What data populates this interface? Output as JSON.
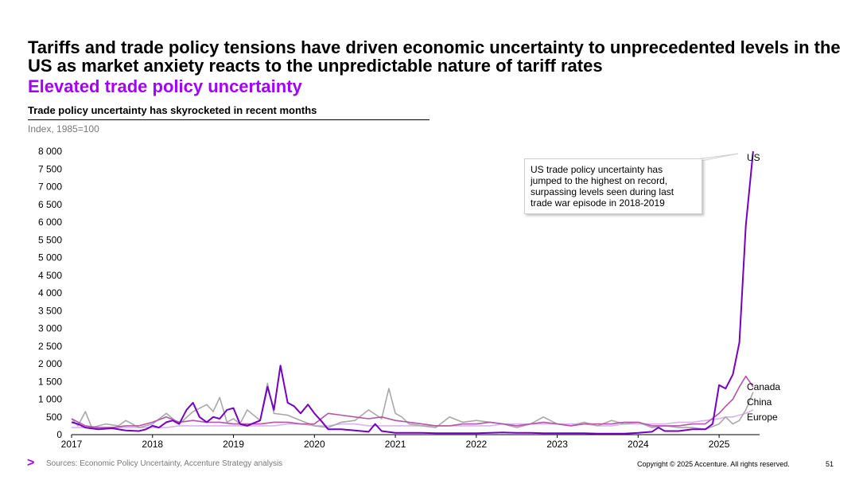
{
  "header": {
    "headline": "Tariffs and trade policy tensions have driven economic uncertainty to unprecedented levels in the US as market anxiety reacts to the unpredictable nature of tariff rates",
    "subhead": "Elevated trade policy uncertainty"
  },
  "chart_header": {
    "title": "Trade policy uncertainty has skyrocketed in recent months",
    "units": "Index, 1985=100"
  },
  "callout": {
    "text": "US trade policy uncertainty has jumped to the highest on record, surpassing levels seen during last trade war episode in 2018-2019"
  },
  "footer": {
    "logo": ">",
    "source": "Sources: Economic Policy Uncertainty, Accenture Strategy analysis",
    "copyright": "Copyright © 2025 Accenture. All rights reserved.",
    "page_number": "51"
  },
  "colors": {
    "US": "#7500c0",
    "Canada": "#b455aa",
    "China": "#a8a8a8",
    "Europe": "#d8b3f0",
    "accent": "#a100ff"
  },
  "chart_data": {
    "type": "line",
    "title": "Trade policy uncertainty has skyrocketed in recent months",
    "ylabel": "Index, 1985=100",
    "xlabel": "",
    "ylim": [
      0,
      8000
    ],
    "xlim": [
      2017,
      2025.5
    ],
    "x_ticks": [
      "2017",
      "2018",
      "2019",
      "2020",
      "2021",
      "2022",
      "2023",
      "2024",
      "2025"
    ],
    "y_ticks": [
      "0",
      "500",
      "1 000",
      "1 500",
      "2 000",
      "2 500",
      "3 000",
      "3 500",
      "4 000",
      "4 500",
      "5 000",
      "5 500",
      "6 000",
      "6 500",
      "7 000",
      "7 500",
      "8 000"
    ],
    "y_tick_values": [
      0,
      500,
      1000,
      1500,
      2000,
      2500,
      3000,
      3500,
      4000,
      4500,
      5000,
      5500,
      6000,
      6500,
      7000,
      7500,
      8000
    ],
    "grid": false,
    "legend": "end-of-line labels",
    "series": [
      {
        "name": "US",
        "points": [
          [
            2017.0,
            350
          ],
          [
            2017.08,
            300
          ],
          [
            2017.17,
            200
          ],
          [
            2017.33,
            150
          ],
          [
            2017.5,
            180
          ],
          [
            2017.67,
            120
          ],
          [
            2017.83,
            100
          ],
          [
            2017.92,
            150
          ],
          [
            2018.0,
            250
          ],
          [
            2018.08,
            200
          ],
          [
            2018.17,
            350
          ],
          [
            2018.25,
            400
          ],
          [
            2018.33,
            300
          ],
          [
            2018.42,
            700
          ],
          [
            2018.5,
            900
          ],
          [
            2018.58,
            500
          ],
          [
            2018.67,
            350
          ],
          [
            2018.75,
            500
          ],
          [
            2018.83,
            450
          ],
          [
            2018.92,
            700
          ],
          [
            2019.0,
            750
          ],
          [
            2019.08,
            300
          ],
          [
            2019.17,
            250
          ],
          [
            2019.33,
            400
          ],
          [
            2019.42,
            1350
          ],
          [
            2019.5,
            700
          ],
          [
            2019.58,
            1950
          ],
          [
            2019.67,
            900
          ],
          [
            2019.75,
            800
          ],
          [
            2019.83,
            600
          ],
          [
            2019.92,
            850
          ],
          [
            2020.0,
            600
          ],
          [
            2020.08,
            400
          ],
          [
            2020.17,
            150
          ],
          [
            2020.33,
            150
          ],
          [
            2020.5,
            120
          ],
          [
            2020.67,
            80
          ],
          [
            2020.75,
            300
          ],
          [
            2020.83,
            100
          ],
          [
            2021.0,
            50
          ],
          [
            2021.17,
            50
          ],
          [
            2021.33,
            50
          ],
          [
            2021.5,
            40
          ],
          [
            2021.67,
            40
          ],
          [
            2021.83,
            40
          ],
          [
            2022.0,
            40
          ],
          [
            2022.17,
            50
          ],
          [
            2022.33,
            60
          ],
          [
            2022.5,
            50
          ],
          [
            2022.67,
            50
          ],
          [
            2022.83,
            40
          ],
          [
            2023.0,
            40
          ],
          [
            2023.17,
            40
          ],
          [
            2023.33,
            40
          ],
          [
            2023.5,
            30
          ],
          [
            2023.67,
            30
          ],
          [
            2023.83,
            30
          ],
          [
            2024.0,
            50
          ],
          [
            2024.17,
            80
          ],
          [
            2024.25,
            200
          ],
          [
            2024.33,
            100
          ],
          [
            2024.5,
            100
          ],
          [
            2024.67,
            150
          ],
          [
            2024.83,
            150
          ],
          [
            2024.92,
            300
          ],
          [
            2025.0,
            1400
          ],
          [
            2025.08,
            1300
          ],
          [
            2025.17,
            1700
          ],
          [
            2025.25,
            2600
          ],
          [
            2025.33,
            5900
          ],
          [
            2025.42,
            8000
          ]
        ]
      },
      {
        "name": "Canada",
        "points": [
          [
            2017.0,
            450
          ],
          [
            2017.17,
            250
          ],
          [
            2017.33,
            200
          ],
          [
            2017.5,
            200
          ],
          [
            2017.67,
            250
          ],
          [
            2017.83,
            250
          ],
          [
            2018.0,
            350
          ],
          [
            2018.17,
            500
          ],
          [
            2018.33,
            350
          ],
          [
            2018.5,
            400
          ],
          [
            2018.67,
            350
          ],
          [
            2018.83,
            350
          ],
          [
            2019.0,
            300
          ],
          [
            2019.17,
            300
          ],
          [
            2019.33,
            300
          ],
          [
            2019.5,
            350
          ],
          [
            2019.67,
            350
          ],
          [
            2019.83,
            300
          ],
          [
            2020.0,
            300
          ],
          [
            2020.17,
            600
          ],
          [
            2020.33,
            550
          ],
          [
            2020.5,
            500
          ],
          [
            2020.67,
            450
          ],
          [
            2020.83,
            500
          ],
          [
            2021.0,
            400
          ],
          [
            2021.17,
            350
          ],
          [
            2021.33,
            300
          ],
          [
            2021.5,
            250
          ],
          [
            2021.67,
            250
          ],
          [
            2021.83,
            300
          ],
          [
            2022.0,
            300
          ],
          [
            2022.17,
            350
          ],
          [
            2022.33,
            300
          ],
          [
            2022.5,
            250
          ],
          [
            2022.67,
            300
          ],
          [
            2022.83,
            350
          ],
          [
            2023.0,
            300
          ],
          [
            2023.17,
            250
          ],
          [
            2023.33,
            300
          ],
          [
            2023.5,
            300
          ],
          [
            2023.67,
            300
          ],
          [
            2023.83,
            350
          ],
          [
            2024.0,
            350
          ],
          [
            2024.17,
            250
          ],
          [
            2024.33,
            250
          ],
          [
            2024.5,
            250
          ],
          [
            2024.67,
            300
          ],
          [
            2024.83,
            300
          ],
          [
            2025.0,
            600
          ],
          [
            2025.08,
            800
          ],
          [
            2025.17,
            1000
          ],
          [
            2025.25,
            1350
          ],
          [
            2025.33,
            1650
          ],
          [
            2025.42,
            1350
          ]
        ]
      },
      {
        "name": "China",
        "points": [
          [
            2017.0,
            450
          ],
          [
            2017.08,
            250
          ],
          [
            2017.17,
            650
          ],
          [
            2017.25,
            200
          ],
          [
            2017.42,
            300
          ],
          [
            2017.58,
            250
          ],
          [
            2017.67,
            400
          ],
          [
            2017.83,
            200
          ],
          [
            2018.0,
            300
          ],
          [
            2018.17,
            600
          ],
          [
            2018.33,
            300
          ],
          [
            2018.5,
            650
          ],
          [
            2018.67,
            850
          ],
          [
            2018.75,
            650
          ],
          [
            2018.83,
            1050
          ],
          [
            2018.92,
            350
          ],
          [
            2019.0,
            450
          ],
          [
            2019.08,
            300
          ],
          [
            2019.17,
            700
          ],
          [
            2019.33,
            400
          ],
          [
            2019.42,
            1450
          ],
          [
            2019.5,
            600
          ],
          [
            2019.67,
            550
          ],
          [
            2019.83,
            400
          ],
          [
            2020.0,
            250
          ],
          [
            2020.17,
            200
          ],
          [
            2020.33,
            350
          ],
          [
            2020.5,
            400
          ],
          [
            2020.67,
            700
          ],
          [
            2020.83,
            450
          ],
          [
            2020.92,
            1300
          ],
          [
            2021.0,
            600
          ],
          [
            2021.08,
            500
          ],
          [
            2021.17,
            300
          ],
          [
            2021.33,
            250
          ],
          [
            2021.5,
            200
          ],
          [
            2021.67,
            500
          ],
          [
            2021.83,
            350
          ],
          [
            2022.0,
            400
          ],
          [
            2022.17,
            350
          ],
          [
            2022.33,
            300
          ],
          [
            2022.5,
            200
          ],
          [
            2022.67,
            300
          ],
          [
            2022.83,
            500
          ],
          [
            2023.0,
            300
          ],
          [
            2023.17,
            250
          ],
          [
            2023.33,
            350
          ],
          [
            2023.5,
            250
          ],
          [
            2023.67,
            400
          ],
          [
            2023.83,
            300
          ],
          [
            2024.0,
            350
          ],
          [
            2024.17,
            200
          ],
          [
            2024.33,
            250
          ],
          [
            2024.5,
            200
          ],
          [
            2024.67,
            200
          ],
          [
            2024.83,
            150
          ],
          [
            2025.0,
            300
          ],
          [
            2025.08,
            500
          ],
          [
            2025.17,
            300
          ],
          [
            2025.25,
            400
          ],
          [
            2025.33,
            700
          ],
          [
            2025.42,
            1200
          ]
        ]
      },
      {
        "name": "Europe",
        "points": [
          [
            2017.0,
            200
          ],
          [
            2017.17,
            200
          ],
          [
            2017.33,
            200
          ],
          [
            2017.5,
            200
          ],
          [
            2017.67,
            200
          ],
          [
            2017.83,
            200
          ],
          [
            2018.0,
            200
          ],
          [
            2018.17,
            200
          ],
          [
            2018.33,
            250
          ],
          [
            2018.5,
            250
          ],
          [
            2018.67,
            250
          ],
          [
            2018.83,
            250
          ],
          [
            2019.0,
            250
          ],
          [
            2019.17,
            250
          ],
          [
            2019.33,
            250
          ],
          [
            2019.5,
            250
          ],
          [
            2019.67,
            300
          ],
          [
            2019.83,
            300
          ],
          [
            2020.0,
            250
          ],
          [
            2020.17,
            250
          ],
          [
            2020.33,
            300
          ],
          [
            2020.5,
            300
          ],
          [
            2020.67,
            250
          ],
          [
            2020.83,
            250
          ],
          [
            2021.0,
            250
          ],
          [
            2021.17,
            250
          ],
          [
            2021.33,
            250
          ],
          [
            2021.5,
            250
          ],
          [
            2021.67,
            250
          ],
          [
            2021.83,
            250
          ],
          [
            2022.0,
            250
          ],
          [
            2022.17,
            250
          ],
          [
            2022.33,
            300
          ],
          [
            2022.5,
            300
          ],
          [
            2022.67,
            300
          ],
          [
            2022.83,
            300
          ],
          [
            2023.0,
            300
          ],
          [
            2023.17,
            300
          ],
          [
            2023.33,
            300
          ],
          [
            2023.5,
            250
          ],
          [
            2023.67,
            250
          ],
          [
            2023.83,
            300
          ],
          [
            2024.0,
            300
          ],
          [
            2024.17,
            300
          ],
          [
            2024.33,
            300
          ],
          [
            2024.5,
            350
          ],
          [
            2024.67,
            350
          ],
          [
            2024.83,
            400
          ],
          [
            2025.0,
            450
          ],
          [
            2025.08,
            500
          ],
          [
            2025.17,
            500
          ],
          [
            2025.25,
            550
          ],
          [
            2025.33,
            600
          ],
          [
            2025.42,
            700
          ]
        ]
      }
    ]
  }
}
